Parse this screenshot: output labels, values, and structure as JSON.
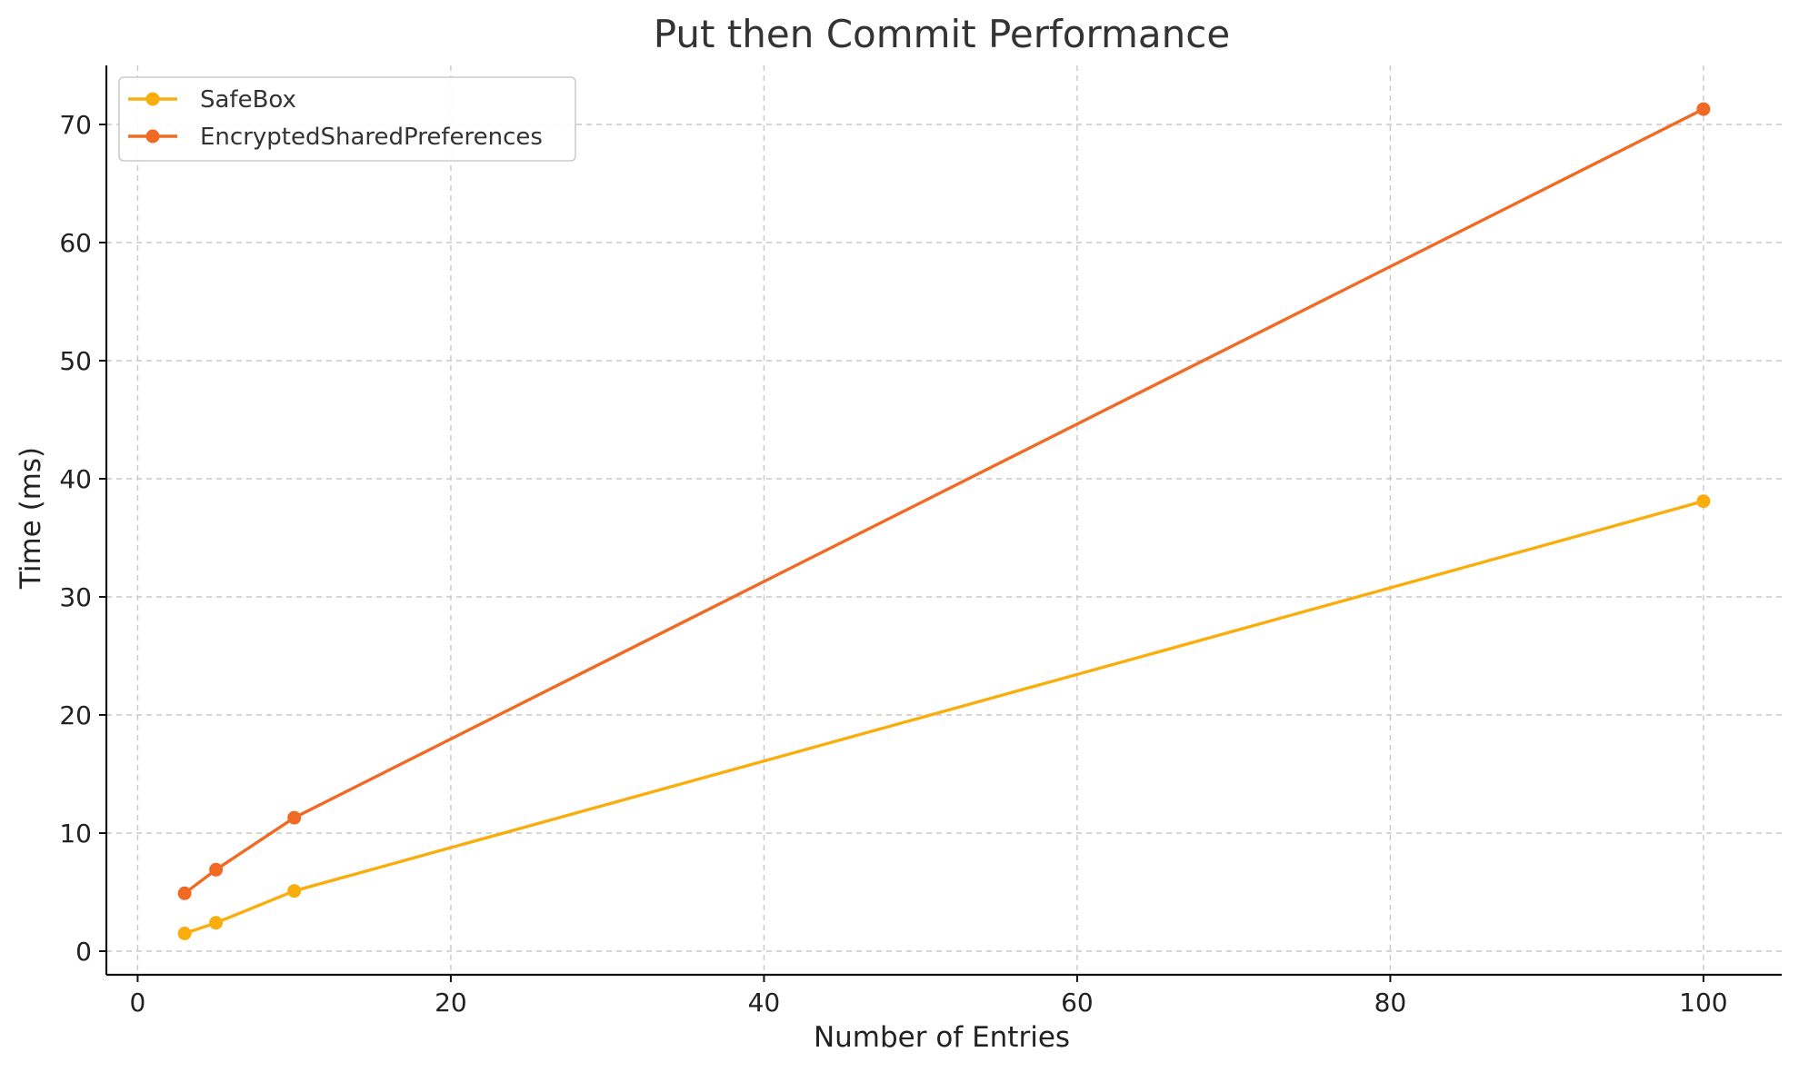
{
  "chart_data": {
    "type": "line",
    "title": "Put then Commit Performance",
    "xlabel": "Number of Entries",
    "ylabel": "Time (ms)",
    "xlim": [
      -2,
      105
    ],
    "ylim": [
      -2,
      75
    ],
    "xticks": [
      0,
      20,
      40,
      60,
      80,
      100
    ],
    "yticks": [
      0,
      10,
      20,
      30,
      40,
      50,
      60,
      70
    ],
    "grid": true,
    "legend_position": "top-left",
    "series": [
      {
        "name": "SafeBox",
        "color": "#F9AE0D",
        "marker": "circle",
        "x": [
          3,
          5,
          10,
          100
        ],
        "y": [
          1.5,
          2.4,
          5.1,
          38.1
        ]
      },
      {
        "name": "EncryptedSharedPreferences",
        "color": "#F06A24",
        "marker": "circle",
        "x": [
          3,
          5,
          10,
          100
        ],
        "y": [
          4.9,
          6.9,
          11.3,
          71.3
        ]
      }
    ]
  }
}
